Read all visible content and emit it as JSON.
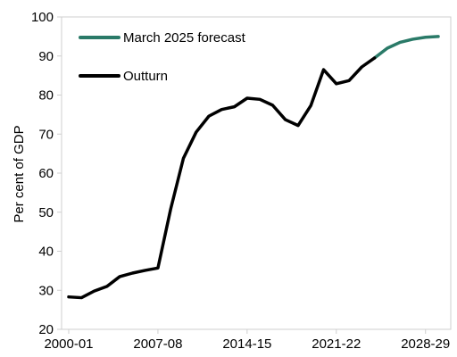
{
  "chart_data": {
    "type": "line",
    "title": "",
    "xlabel": "",
    "ylabel": "Per cent of GDP",
    "ylim": [
      20,
      100
    ],
    "yticks": [
      20,
      30,
      40,
      50,
      60,
      70,
      80,
      90,
      100
    ],
    "xtick_labels": [
      "2000-01",
      "2007-08",
      "2014-15",
      "2021-22",
      "2028-29"
    ],
    "x": [
      "2000-01",
      "2001-02",
      "2002-03",
      "2003-04",
      "2004-05",
      "2005-06",
      "2006-07",
      "2007-08",
      "2008-09",
      "2009-10",
      "2010-11",
      "2011-12",
      "2012-13",
      "2013-14",
      "2014-15",
      "2015-16",
      "2016-17",
      "2017-18",
      "2018-19",
      "2019-20",
      "2020-21",
      "2021-22",
      "2022-23",
      "2023-24",
      "2024-25",
      "2025-26",
      "2026-27",
      "2027-28",
      "2028-29",
      "2029-30"
    ],
    "legend_position": "top-left",
    "series": [
      {
        "name": "March 2025 forecast",
        "color": "#2a7a68",
        "values": [
          null,
          null,
          null,
          null,
          null,
          null,
          null,
          null,
          null,
          null,
          null,
          null,
          null,
          null,
          null,
          null,
          null,
          null,
          null,
          null,
          null,
          null,
          null,
          null,
          89.5,
          92.0,
          93.5,
          94.3,
          94.8,
          95.0
        ]
      },
      {
        "name": "Outturn",
        "color": "#000000",
        "values": [
          28.3,
          28.1,
          29.8,
          31.0,
          33.5,
          34.4,
          35.1,
          35.7,
          50.8,
          63.8,
          70.5,
          74.6,
          76.3,
          77.0,
          79.2,
          78.9,
          77.4,
          73.7,
          72.2,
          77.3,
          86.5,
          82.9,
          83.7,
          87.2,
          89.5,
          null,
          null,
          null,
          null,
          null
        ]
      }
    ]
  }
}
